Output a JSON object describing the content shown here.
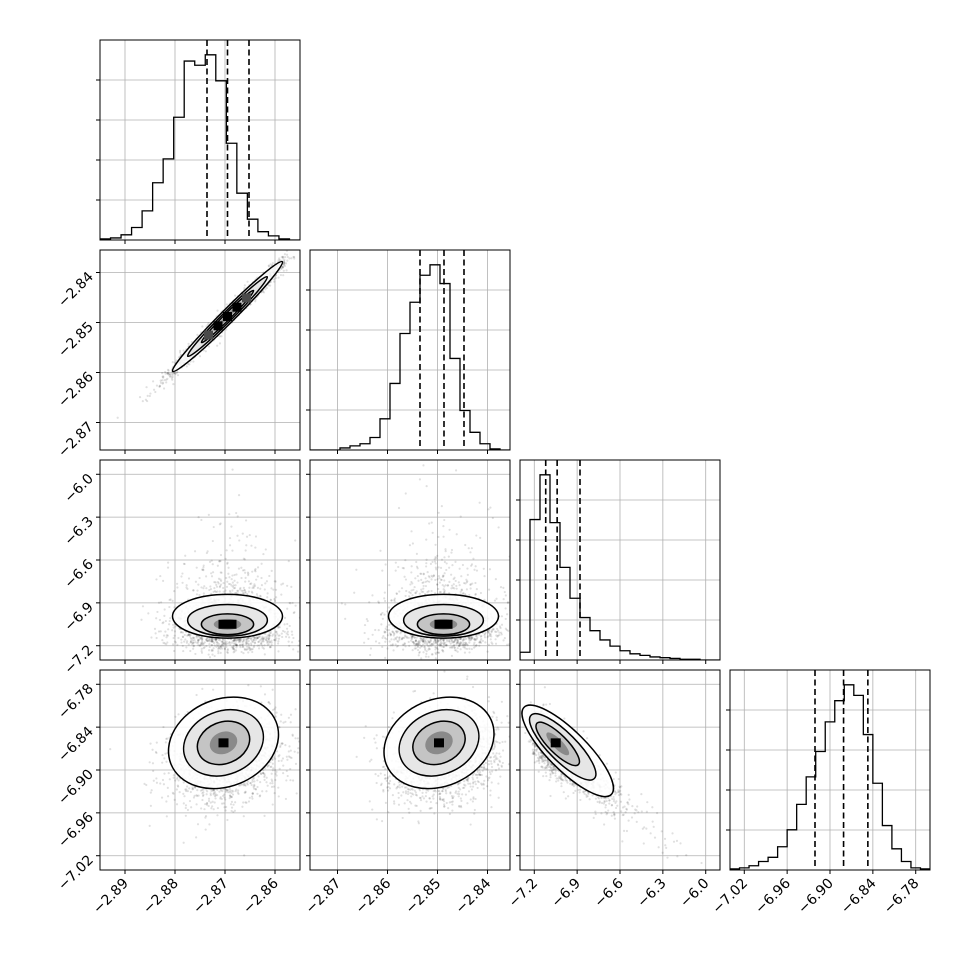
{
  "chart_data": {
    "type": "corner",
    "grid": true,
    "parameters": [
      {
        "id": "p0",
        "range": [
          -2.895,
          -2.855
        ],
        "ticks": [
          -2.89,
          -2.88,
          -2.87,
          -2.86
        ],
        "tick_labels": [
          "−2.89",
          "−2.88",
          "−2.87",
          "−2.86"
        ],
        "quantiles": [
          -2.8736,
          -2.8695,
          -2.8652
        ]
      },
      {
        "id": "p1",
        "range": [
          -2.8755,
          -2.8355
        ],
        "ticks": [
          -2.87,
          -2.86,
          -2.85,
          -2.84
        ],
        "tick_labels": [
          "−2.87",
          "−2.86",
          "−2.85",
          "−2.84"
        ],
        "quantiles": [
          -2.8535,
          -2.8487,
          -2.8447
        ]
      },
      {
        "id": "p2",
        "range": [
          -7.3,
          -5.9
        ],
        "ticks": [
          -7.2,
          -6.9,
          -6.6,
          -6.3,
          -6.0
        ],
        "tick_labels": [
          "−7.2",
          "−6.9",
          "−6.6",
          "−6.3",
          "−6.0"
        ],
        "quantiles": [
          -7.12,
          -7.04,
          -6.88
        ]
      },
      {
        "id": "p3",
        "range": [
          -7.04,
          -6.76
        ],
        "ticks": [
          -7.02,
          -6.96,
          -6.9,
          -6.84,
          -6.78
        ],
        "tick_labels": [
          "−7.02",
          "−6.96",
          "−6.90",
          "−6.84",
          "−6.78"
        ],
        "quantiles": [
          -6.921,
          -6.881,
          -6.847
        ]
      }
    ],
    "histograms": [
      {
        "param": "p0",
        "counts": [
          1,
          2,
          5,
          12,
          28,
          55,
          78,
          118,
          172,
          168,
          178,
          153,
          93,
          45,
          20,
          8,
          4,
          1,
          0
        ]
      },
      {
        "param": "p1",
        "counts": [
          0,
          0,
          0,
          2,
          4,
          6,
          12,
          30,
          64,
          112,
          142,
          168,
          178,
          160,
          88,
          38,
          17,
          6,
          1,
          0
        ]
      },
      {
        "param": "p2",
        "counts": [
          10,
          182,
          240,
          178,
          120,
          80,
          55,
          38,
          26,
          18,
          12,
          8,
          6,
          4,
          3,
          2,
          1,
          1,
          0,
          0
        ]
      },
      {
        "param": "p3",
        "counts": [
          1,
          2,
          4,
          8,
          12,
          22,
          38,
          62,
          88,
          112,
          140,
          160,
          175,
          165,
          128,
          82,
          42,
          20,
          8,
          2,
          1
        ]
      }
    ],
    "scatter_panels": [
      {
        "x": "p0",
        "y": "p1",
        "mean": [
          -2.8695,
          -2.8488
        ],
        "sd": [
          0.0055,
          0.0055
        ],
        "rho": 0.985,
        "peak": [
          -2.8695,
          -2.8488
        ]
      },
      {
        "x": "p0",
        "y": "p2",
        "mean": [
          -2.8695,
          -6.95
        ],
        "sd": [
          0.0055,
          0.17
        ],
        "rho": 0.0,
        "peak": [
          -2.8695,
          -7.05
        ]
      },
      {
        "x": "p1",
        "y": "p2",
        "mean": [
          -2.8488,
          -6.95
        ],
        "sd": [
          0.0055,
          0.17
        ],
        "rho": 0.0,
        "peak": [
          -2.8488,
          -7.05
        ]
      },
      {
        "x": "p0",
        "y": "p3",
        "mean": [
          -2.8695,
          -6.882
        ],
        "sd": [
          0.0055,
          0.032
        ],
        "rho": 0.18,
        "peak": [
          -2.8703,
          -6.862
        ]
      },
      {
        "x": "p1",
        "y": "p3",
        "mean": [
          -2.8488,
          -6.882
        ],
        "sd": [
          0.0055,
          0.032
        ],
        "rho": 0.2,
        "peak": [
          -2.8497,
          -6.862
        ]
      },
      {
        "x": "p2",
        "y": "p3",
        "mean": [
          -6.98,
          -6.882
        ],
        "sd": [
          0.16,
          0.032
        ],
        "rho": -0.82,
        "peak": [
          -7.05,
          -6.862
        ]
      }
    ]
  }
}
